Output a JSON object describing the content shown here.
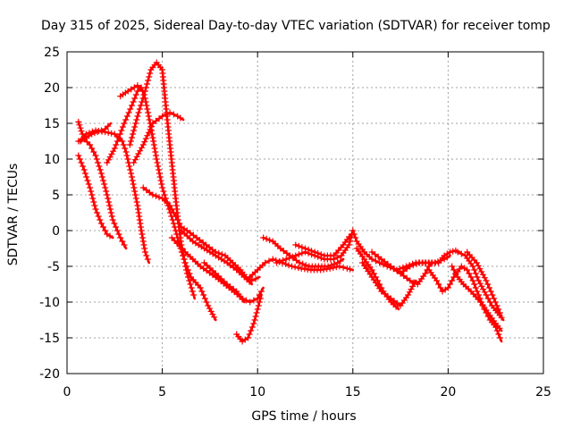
{
  "chart_data": {
    "type": "scatter",
    "title": "Day 315 of 2025, Sidereal Day-to-day VTEC variation (SDTVAR) for receiver tomp",
    "xlabel": "GPS time / hours",
    "ylabel": "SDTVAR / TECUs",
    "xlim": [
      0,
      25
    ],
    "ylim": [
      -20,
      25
    ],
    "xticks": [
      0,
      5,
      10,
      15,
      20,
      25
    ],
    "yticks": [
      -20,
      -15,
      -10,
      -5,
      0,
      5,
      10,
      15,
      20,
      25
    ],
    "grid": true,
    "marker": "+",
    "color": "#ff0000",
    "series": [
      {
        "name": "trace-1",
        "points": [
          [
            0.6,
            15.2
          ],
          [
            0.8,
            13.5
          ],
          [
            1.0,
            13.0
          ],
          [
            1.3,
            13.5
          ],
          [
            1.6,
            13.8
          ],
          [
            2.0,
            14.2
          ],
          [
            2.3,
            15.0
          ]
        ]
      },
      {
        "name": "trace-2",
        "points": [
          [
            0.6,
            12.5
          ],
          [
            0.9,
            12.8
          ],
          [
            1.2,
            12.0
          ],
          [
            1.5,
            10.5
          ],
          [
            1.8,
            8.0
          ],
          [
            2.1,
            5.0
          ],
          [
            2.4,
            1.5
          ],
          [
            2.8,
            -1.0
          ],
          [
            3.1,
            -2.5
          ]
        ]
      },
      {
        "name": "trace-3",
        "points": [
          [
            0.6,
            10.5
          ],
          [
            0.9,
            8.5
          ],
          [
            1.2,
            6.0
          ],
          [
            1.5,
            3.0
          ],
          [
            1.8,
            1.0
          ],
          [
            2.1,
            -0.5
          ],
          [
            2.4,
            -1.0
          ]
        ]
      },
      {
        "name": "trace-4",
        "points": [
          [
            0.7,
            12.5
          ],
          [
            1.0,
            13.5
          ],
          [
            1.5,
            14.0
          ],
          [
            2.0,
            13.8
          ],
          [
            2.5,
            13.5
          ],
          [
            2.9,
            12.5
          ],
          [
            3.1,
            11.0
          ],
          [
            3.4,
            7.5
          ],
          [
            3.7,
            3.5
          ],
          [
            3.9,
            0.0
          ],
          [
            4.1,
            -3.0
          ],
          [
            4.3,
            -4.5
          ]
        ]
      },
      {
        "name": "trace-5",
        "points": [
          [
            2.1,
            9.5
          ],
          [
            2.5,
            11.5
          ],
          [
            3.0,
            15.0
          ],
          [
            3.4,
            17.5
          ],
          [
            3.7,
            19.5
          ],
          [
            3.9,
            20.0
          ],
          [
            4.1,
            18.5
          ],
          [
            4.4,
            14.5
          ],
          [
            4.7,
            10.0
          ],
          [
            5.0,
            6.0
          ],
          [
            5.3,
            3.5
          ],
          [
            5.6,
            1.0
          ],
          [
            5.9,
            -2.0
          ],
          [
            6.2,
            -4.5
          ],
          [
            6.5,
            -6.5
          ],
          [
            7.0,
            -8.0
          ],
          [
            7.4,
            -10.5
          ],
          [
            7.8,
            -12.5
          ]
        ]
      },
      {
        "name": "trace-6",
        "points": [
          [
            2.8,
            18.8
          ],
          [
            3.2,
            19.5
          ],
          [
            3.7,
            20.3
          ],
          [
            4.0,
            19.5
          ]
        ]
      },
      {
        "name": "trace-7",
        "points": [
          [
            3.3,
            12.0
          ],
          [
            3.7,
            16.0
          ],
          [
            4.1,
            19.5
          ],
          [
            4.4,
            22.5
          ],
          [
            4.7,
            23.5
          ],
          [
            5.0,
            22.5
          ],
          [
            5.2,
            17.0
          ],
          [
            5.4,
            12.0
          ],
          [
            5.6,
            7.0
          ],
          [
            5.8,
            2.0
          ],
          [
            6.0,
            -2.0
          ],
          [
            6.3,
            -6.0
          ],
          [
            6.7,
            -9.5
          ]
        ]
      },
      {
        "name": "trace-8",
        "points": [
          [
            3.5,
            9.5
          ],
          [
            4.0,
            12.0
          ],
          [
            4.5,
            15.0
          ],
          [
            5.0,
            16.0
          ],
          [
            5.4,
            16.5
          ],
          [
            5.8,
            16.0
          ],
          [
            6.1,
            15.5
          ]
        ]
      },
      {
        "name": "trace-9",
        "points": [
          [
            4.0,
            6.0
          ],
          [
            4.5,
            5.0
          ],
          [
            5.0,
            4.5
          ],
          [
            5.4,
            3.5
          ],
          [
            5.7,
            2.0
          ],
          [
            6.0,
            0.5
          ],
          [
            6.3,
            0.0
          ],
          [
            6.8,
            -1.0
          ],
          [
            7.3,
            -2.0
          ],
          [
            7.8,
            -3.0
          ],
          [
            8.3,
            -3.5
          ],
          [
            8.7,
            -4.5
          ],
          [
            9.1,
            -5.5
          ],
          [
            9.4,
            -6.5
          ],
          [
            9.7,
            -7.0
          ],
          [
            10.1,
            -6.5
          ]
        ]
      },
      {
        "name": "trace-10",
        "points": [
          [
            6.0,
            0.0
          ],
          [
            6.6,
            -1.5
          ],
          [
            7.2,
            -2.5
          ],
          [
            7.8,
            -3.5
          ],
          [
            8.4,
            -4.5
          ],
          [
            8.9,
            -5.5
          ],
          [
            9.3,
            -6.5
          ],
          [
            9.7,
            -7.5
          ]
        ]
      },
      {
        "name": "trace-11",
        "points": [
          [
            5.5,
            -1.0
          ],
          [
            6.2,
            -3.0
          ],
          [
            7.0,
            -5.0
          ],
          [
            7.8,
            -6.5
          ],
          [
            8.5,
            -8.0
          ],
          [
            9.2,
            -9.5
          ],
          [
            9.6,
            -10.0
          ],
          [
            10.0,
            -9.5
          ],
          [
            10.3,
            -8.0
          ]
        ]
      },
      {
        "name": "trace-12",
        "points": [
          [
            7.2,
            -4.5
          ],
          [
            7.8,
            -6.0
          ],
          [
            8.4,
            -7.5
          ],
          [
            8.9,
            -8.5
          ],
          [
            9.3,
            -10.0
          ]
        ]
      },
      {
        "name": "trace-13",
        "points": [
          [
            8.9,
            -14.5
          ],
          [
            9.2,
            -15.5
          ],
          [
            9.5,
            -15.0
          ],
          [
            9.8,
            -13.0
          ],
          [
            10.0,
            -11.0
          ],
          [
            10.2,
            -9.0
          ]
        ]
      },
      {
        "name": "trace-14",
        "points": [
          [
            9.6,
            -6.5
          ],
          [
            10.0,
            -5.5
          ],
          [
            10.4,
            -4.5
          ],
          [
            10.8,
            -4.0
          ],
          [
            11.3,
            -4.5
          ],
          [
            11.8,
            -5.0
          ],
          [
            12.3,
            -5.3
          ],
          [
            12.8,
            -5.5
          ],
          [
            13.3,
            -5.5
          ],
          [
            13.8,
            -5.3
          ],
          [
            14.3,
            -5.0
          ],
          [
            14.7,
            -5.3
          ],
          [
            15.0,
            -5.5
          ]
        ]
      },
      {
        "name": "trace-15",
        "points": [
          [
            10.3,
            -1.0
          ],
          [
            10.8,
            -1.5
          ],
          [
            11.2,
            -2.5
          ],
          [
            11.7,
            -3.5
          ],
          [
            12.2,
            -4.5
          ],
          [
            12.7,
            -5.0
          ],
          [
            13.2,
            -5.0
          ],
          [
            13.7,
            -5.0
          ],
          [
            14.2,
            -4.5
          ],
          [
            14.5,
            -4.0
          ]
        ]
      },
      {
        "name": "trace-16",
        "points": [
          [
            11.0,
            -4.5
          ],
          [
            11.5,
            -4.0
          ],
          [
            12.0,
            -3.5
          ],
          [
            12.5,
            -3.0
          ],
          [
            13.0,
            -3.5
          ],
          [
            13.5,
            -4.0
          ],
          [
            14.0,
            -4.0
          ],
          [
            14.4,
            -3.5
          ],
          [
            14.8,
            -2.0
          ],
          [
            15.0,
            0.0
          ],
          [
            15.2,
            -1.5
          ],
          [
            15.6,
            -3.0
          ],
          [
            16.0,
            -4.0
          ],
          [
            16.4,
            -4.5
          ],
          [
            16.8,
            -5.0
          ],
          [
            17.3,
            -5.5
          ],
          [
            17.8,
            -5.0
          ],
          [
            18.3,
            -4.5
          ],
          [
            18.8,
            -4.5
          ],
          [
            19.3,
            -4.5
          ],
          [
            19.8,
            -4.0
          ],
          [
            20.1,
            -3.5
          ]
        ]
      },
      {
        "name": "trace-17",
        "points": [
          [
            12.0,
            -2.0
          ],
          [
            12.5,
            -2.5
          ],
          [
            13.0,
            -3.0
          ],
          [
            13.5,
            -3.5
          ],
          [
            14.0,
            -3.5
          ],
          [
            14.5,
            -2.0
          ],
          [
            14.9,
            -0.5
          ]
        ]
      },
      {
        "name": "trace-18",
        "points": [
          [
            15.2,
            -2.5
          ],
          [
            15.6,
            -4.0
          ],
          [
            16.0,
            -5.5
          ],
          [
            16.3,
            -7.0
          ],
          [
            16.6,
            -8.5
          ],
          [
            17.0,
            -10.0
          ],
          [
            17.4,
            -11.0
          ]
        ]
      },
      {
        "name": "trace-19",
        "points": [
          [
            15.5,
            -4.5
          ],
          [
            16.0,
            -6.5
          ],
          [
            16.5,
            -8.5
          ],
          [
            17.0,
            -9.5
          ],
          [
            17.5,
            -10.5
          ],
          [
            17.9,
            -9.0
          ],
          [
            18.3,
            -7.0
          ]
        ]
      },
      {
        "name": "trace-20",
        "points": [
          [
            16.0,
            -3.0
          ],
          [
            16.5,
            -4.0
          ],
          [
            17.0,
            -5.0
          ],
          [
            17.5,
            -6.0
          ],
          [
            18.0,
            -7.0
          ],
          [
            18.4,
            -7.5
          ],
          [
            18.8,
            -6.0
          ],
          [
            19.1,
            -4.5
          ]
        ]
      },
      {
        "name": "trace-21",
        "points": [
          [
            17.5,
            -6.0
          ],
          [
            18.0,
            -5.0
          ],
          [
            18.5,
            -4.5
          ],
          [
            19.0,
            -4.5
          ],
          [
            19.5,
            -4.5
          ],
          [
            19.8,
            -3.5
          ],
          [
            20.1,
            -3.0
          ],
          [
            20.4,
            -2.8
          ],
          [
            20.6,
            -3.0
          ]
        ]
      },
      {
        "name": "trace-22",
        "points": [
          [
            19.0,
            -5.5
          ],
          [
            19.4,
            -7.0
          ],
          [
            19.7,
            -8.5
          ],
          [
            20.0,
            -8.0
          ],
          [
            20.3,
            -6.5
          ],
          [
            20.7,
            -5.0
          ],
          [
            21.0,
            -5.5
          ],
          [
            21.3,
            -7.0
          ],
          [
            21.6,
            -9.0
          ],
          [
            21.9,
            -11.0
          ],
          [
            22.2,
            -12.5
          ],
          [
            22.5,
            -13.5
          ],
          [
            22.8,
            -15.5
          ]
        ]
      },
      {
        "name": "trace-23",
        "points": [
          [
            20.5,
            -3.0
          ],
          [
            20.9,
            -3.5
          ],
          [
            21.3,
            -5.0
          ],
          [
            21.6,
            -7.0
          ],
          [
            22.0,
            -9.0
          ],
          [
            22.3,
            -10.5
          ],
          [
            22.6,
            -11.5
          ],
          [
            22.9,
            -12.5
          ]
        ]
      },
      {
        "name": "trace-24",
        "points": [
          [
            20.2,
            -5.0
          ],
          [
            20.5,
            -6.5
          ],
          [
            20.8,
            -7.5
          ],
          [
            21.2,
            -8.5
          ],
          [
            21.7,
            -10.0
          ],
          [
            22.1,
            -11.5
          ],
          [
            22.5,
            -13.0
          ],
          [
            22.8,
            -14.0
          ]
        ]
      },
      {
        "name": "trace-25",
        "points": [
          [
            21.0,
            -3.0
          ],
          [
            21.5,
            -4.5
          ],
          [
            22.0,
            -7.0
          ],
          [
            22.4,
            -9.5
          ],
          [
            22.8,
            -12.0
          ]
        ]
      }
    ]
  }
}
